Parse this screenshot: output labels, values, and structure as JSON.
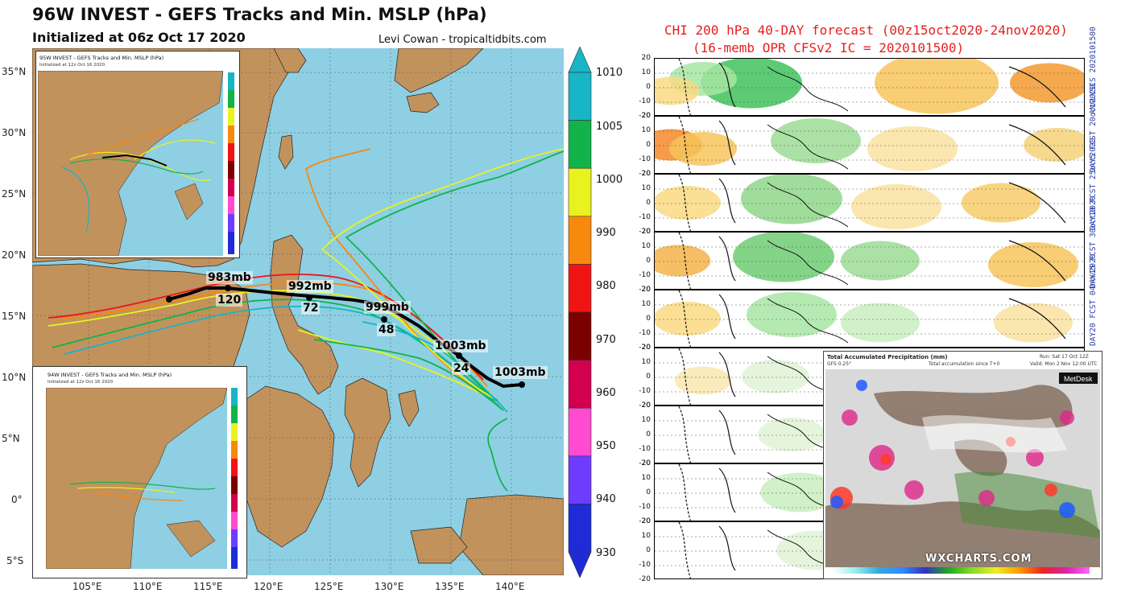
{
  "gefs": {
    "title": "96W INVEST - GEFS Tracks and Min. MSLP (hPa)",
    "subtitle": "Initialized at 06z Oct 17 2020",
    "credit": "Levi Cowan - tropicaltidbits.com",
    "lat_labels": [
      "35°N",
      "30°N",
      "25°N",
      "20°N",
      "15°N",
      "10°N",
      "5°N",
      "0°",
      "5°S"
    ],
    "lon_labels": [
      "105°E",
      "110°E",
      "115°E",
      "120°E",
      "125°E",
      "130°E",
      "135°E",
      "140°E"
    ],
    "colorbar": {
      "labels": [
        "1010",
        "1005",
        "1000",
        "990",
        "980",
        "970",
        "960",
        "950",
        "940",
        "930"
      ],
      "colors": [
        "#17b5c5",
        "#11b34a",
        "#e9f21f",
        "#f7890e",
        "#f01414",
        "#7b0000",
        "#d2004e",
        "#ff4bd0",
        "#6e3cff",
        "#1f2bd6"
      ]
    },
    "pressure_labels": [
      "983mb",
      "992mb",
      "999mb",
      "1003mb",
      "1003mb"
    ],
    "hour_labels": [
      "120",
      "72",
      "48",
      "24"
    ],
    "inset_top": {
      "title": "95W INVEST - GEFS Tracks and Min. MSLP (hPa)",
      "subtitle": "Initialized at 12z Oct 16 2020"
    },
    "inset_bottom": {
      "title": "94W INVEST - GEFS Tracks and Min. MSLP (hPa)",
      "subtitle": "Initialized at 12z Oct 16 2020"
    }
  },
  "chi": {
    "title": "CHI 200 hPa 40-DAY forecast (00z15oct2020-24nov2020)",
    "subtitle": "(16-memb OPR CFSv2 IC = 2020101500)",
    "y_ticks": [
      "20",
      "10",
      "0",
      "-10",
      "-20"
    ],
    "panels": [
      {
        "label": "ANALYSIS 2020101500"
      },
      {
        "label": "DAY5 FCST 20oct2020"
      },
      {
        "label": "DAY10 FCST 25oct2020"
      },
      {
        "label": "DAY15 FCST 30oct2020"
      },
      {
        "label": "DAY20 FCST 04nov2020"
      },
      {
        "label": ""
      },
      {
        "label": ""
      },
      {
        "label": ""
      },
      {
        "label": ""
      }
    ]
  },
  "precip": {
    "title": "Total Accumulated Precipitation (mm)",
    "model": "GFS 0.25°",
    "accum": "Total accumulation since T+0",
    "run": "Run: Sat 17 Oct 12Z",
    "valid": "Valid: Mon 2 Nov 12:00 UTC",
    "brand": "MetDesk",
    "watermark": "WXCHARTS.COM"
  }
}
